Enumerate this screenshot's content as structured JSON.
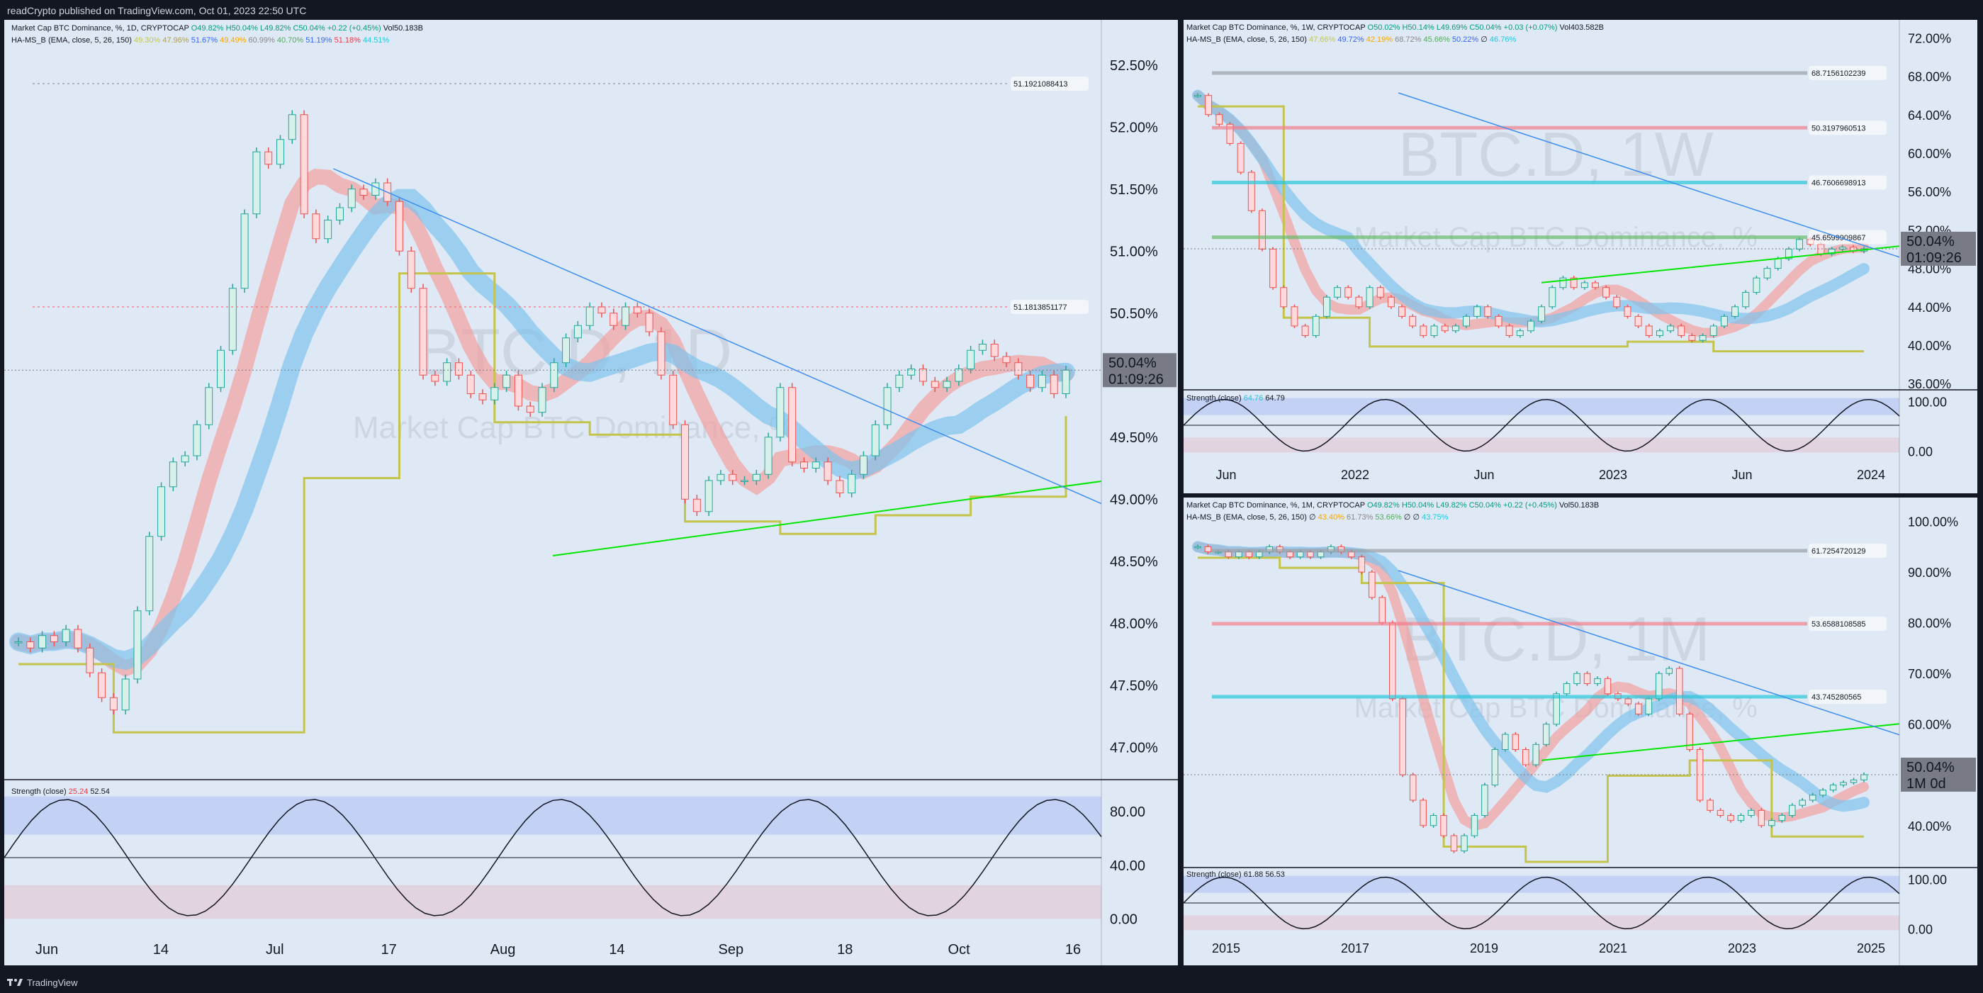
{
  "header": {
    "published": "readCrypto published on TradingView.com, Oct 01, 2023 22:50 UTC"
  },
  "footer": {
    "brand": "TradingView",
    "logo_icon": "tradingview-logo-icon"
  },
  "colors": {
    "background": "#dfe9f6",
    "frame": "#131722",
    "price_label": "#787b86",
    "band_blue": "#6f8cf5",
    "band_red": "#f27d8b",
    "ema_fast": "#f2a0a0",
    "ema_slow": "#7fc3ec",
    "stair": "#c4c44a",
    "trend_green": "#00e600",
    "trend_blue": "#3d8ef0",
    "orange": "#f7941d",
    "purple": "#880e4f"
  },
  "chart_data": [
    {
      "type": "candlestick",
      "panel": "daily",
      "legend_line1": {
        "name": "Market Cap BTC Dominance, %, 1D, CRYPTOCAP",
        "o": "O49.82%",
        "h": "H50.04%",
        "l": "L49.82%",
        "c": "C50.04%",
        "chg": "+0.22 (+0.45%)",
        "vol": "Vol50.183B"
      },
      "legend_line2": {
        "name": "HA-MS_B (EMA, close, 5, 26, 150)",
        "values": [
          "49.30%",
          "47.96%",
          "51.67%",
          "49.49%",
          "60.99%",
          "40.70%",
          "51.19%",
          "51.18%",
          "44.51%"
        ]
      },
      "watermark": {
        "symbol": "BTC.D, 1D",
        "desc": "Market Cap BTC Dominance, %"
      },
      "y_ticks": [
        "52.50%",
        "52.00%",
        "51.50%",
        "51.00%",
        "50.50%",
        "50.00%",
        "49.50%",
        "49.00%",
        "48.50%",
        "48.00%",
        "47.50%",
        "47.00%"
      ],
      "y_range": [
        46.75,
        52.75
      ],
      "x_ticks": [
        "Jun",
        "14",
        "Jul",
        "17",
        "Aug",
        "14",
        "Sep",
        "18",
        "Oct",
        "16"
      ],
      "last_price": "50.04%",
      "countdown": "01:09:26",
      "level_labels": [
        "51.1921088413",
        "51.1813851177"
      ],
      "close_series": [
        47.85,
        47.8,
        47.9,
        47.85,
        47.95,
        47.8,
        47.6,
        47.4,
        47.3,
        47.55,
        48.1,
        48.7,
        49.1,
        49.3,
        49.35,
        49.6,
        49.9,
        50.2,
        50.7,
        51.3,
        51.8,
        51.7,
        51.9,
        52.1,
        51.3,
        51.1,
        51.25,
        51.35,
        51.5,
        51.45,
        51.55,
        51.4,
        51.0,
        50.7,
        50.0,
        49.95,
        50.1,
        50.0,
        49.85,
        49.8,
        49.9,
        50.0,
        49.75,
        49.7,
        49.9,
        50.1,
        50.3,
        50.4,
        50.55,
        50.5,
        50.4,
        50.55,
        50.5,
        50.35,
        50.0,
        49.6,
        49.0,
        48.9,
        49.15,
        49.2,
        49.15,
        49.15,
        49.2,
        49.5,
        49.9,
        49.3,
        49.25,
        49.3,
        49.15,
        49.05,
        49.2,
        49.35,
        49.6,
        49.9,
        50.0,
        50.05,
        49.95,
        49.9,
        49.95,
        50.05,
        50.2,
        50.25,
        50.15,
        50.1,
        50.0,
        49.9,
        50.0,
        49.85,
        50.04
      ],
      "strength_legend": {
        "name": "Strength (close)",
        "v1": "25.24",
        "v2": "52.54"
      },
      "strength_ticks": [
        "80.00",
        "40.00",
        "0.00"
      ]
    },
    {
      "type": "candlestick",
      "panel": "weekly",
      "legend_line1": {
        "name": "Market Cap BTC Dominance, %, 1W, CRYPTOCAP",
        "o": "O50.02%",
        "h": "H50.14%",
        "l": "L49.69%",
        "c": "C50.04%",
        "chg": "+0.03 (+0.07%)",
        "vol": "Vol403.582B"
      },
      "legend_line2": {
        "name": "HA-MS_B (EMA, close, 5, 26, 150)",
        "values": [
          "47.66%",
          "49.72%",
          "42.19%",
          "68.72%",
          "45.66%",
          "50.22%",
          "∅",
          "46.76%"
        ]
      },
      "watermark": {
        "symbol": "BTC.D, 1W",
        "desc": "Market Cap BTC Dominance, %"
      },
      "y_ticks": [
        "72.00%",
        "68.00%",
        "64.00%",
        "60.00%",
        "56.00%",
        "52.00%",
        "48.00%",
        "44.00%",
        "40.00%",
        "36.00%"
      ],
      "y_range": [
        35.5,
        73.5
      ],
      "x_ticks": [
        "Jun",
        "2022",
        "Jun",
        "2023",
        "Jun",
        "2024"
      ],
      "last_price": "50.04%",
      "countdown": "01:09:26",
      "level_labels": [
        "68.7156102239",
        "50.3197960513",
        "46.7606698913",
        "45.6599909867"
      ],
      "close_series": [
        66,
        64,
        63,
        61,
        58,
        54,
        50,
        46,
        44,
        42,
        41,
        43,
        45,
        46,
        45,
        44,
        46,
        45,
        44,
        43,
        42,
        41,
        42,
        41.5,
        42,
        43,
        44,
        43,
        42,
        41,
        41.5,
        42.5,
        44,
        46,
        47,
        46,
        46.5,
        46,
        45,
        44,
        43,
        42,
        41,
        41.5,
        42,
        41,
        40.5,
        41,
        42,
        43,
        44,
        45.5,
        47,
        48,
        49,
        50,
        51,
        50.5,
        49.5,
        50,
        50.2,
        49.8,
        50.04
      ],
      "strength_legend": {
        "name": "Strength (close)",
        "v1": "64.76",
        "v2": "64.79"
      },
      "strength_ticks": [
        "100.00",
        "0.00"
      ]
    },
    {
      "type": "candlestick",
      "panel": "monthly",
      "legend_line1": {
        "name": "Market Cap BTC Dominance, %, 1M, CRYPTOCAP",
        "o": "O49.82%",
        "h": "H50.04%",
        "l": "L49.82%",
        "c": "C50.04%",
        "chg": "+0.22 (+0.45%)",
        "vol": "Vol50.183B"
      },
      "legend_line2": {
        "name": "HA-MS_B (EMA, close, 5, 26, 150)",
        "values": [
          "∅",
          "43.40%",
          "61.73%",
          "53.66%",
          "∅",
          "∅",
          "43.75%"
        ]
      },
      "watermark": {
        "symbol": "BTC.D, 1M",
        "desc": "Market Cap BTC Dominance, %"
      },
      "y_ticks": [
        "100.00%",
        "90.00%",
        "80.00%",
        "70.00%",
        "60.00%",
        "50.00%",
        "40.00%"
      ],
      "y_range": [
        32,
        104
      ],
      "x_ticks": [
        "2015",
        "2017",
        "2019",
        "2021",
        "2023",
        "2025"
      ],
      "last_price": "50.04%",
      "countdown": "1M 0d",
      "level_labels": [
        "61.7254720129",
        "53.6588108585",
        "43.745280565"
      ],
      "close_series": [
        95,
        94,
        94,
        93,
        94,
        93,
        94,
        95,
        94,
        93,
        94,
        93,
        94,
        95,
        94,
        93,
        90,
        85,
        80,
        65,
        50,
        45,
        40,
        42,
        38,
        35,
        38,
        42,
        48,
        55,
        58,
        55,
        52,
        56,
        60,
        66,
        68,
        70,
        68,
        69,
        66,
        65,
        64,
        62,
        65,
        70,
        71,
        62,
        55,
        45,
        43,
        42,
        41,
        42,
        43,
        40,
        41,
        42,
        44,
        45,
        46,
        47,
        48,
        48.5,
        49,
        50.04
      ],
      "strength_legend": {
        "name": "Strength (close)",
        "v1": "61.88",
        "v2": "56.53"
      },
      "strength_ticks": [
        "100.00",
        "0.00"
      ]
    }
  ]
}
